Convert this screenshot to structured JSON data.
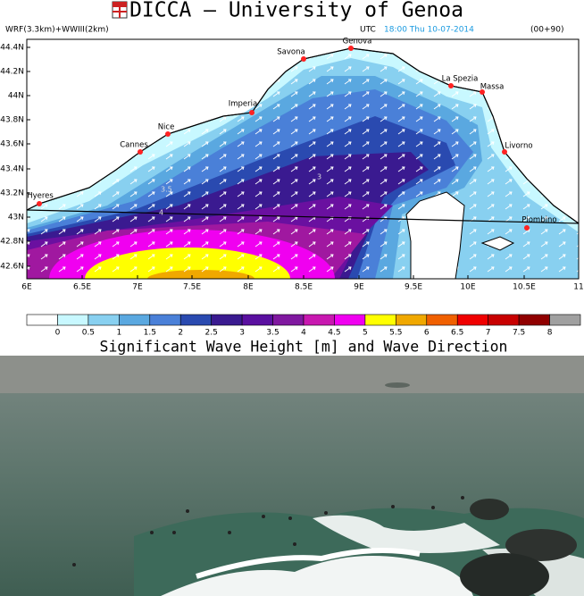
{
  "header": {
    "title": "DICCA — University of Genoa",
    "model": "WRF(3.3km)+WWIII(2km)",
    "time_prefix": "UTC",
    "time": "18:00 Thu 10-07-2014",
    "lead": "(00+90)"
  },
  "map": {
    "lat_labels": [
      "44.4N",
      "44.2N",
      "44N",
      "43.8N",
      "43.6N",
      "43.4N",
      "43.2N",
      "43N",
      "42.8N",
      "42.6N"
    ],
    "lon_labels": [
      "6E",
      "6.5E",
      "7E",
      "7.5E",
      "8E",
      "8.5E",
      "9E",
      "9.5E",
      "10E",
      "10.5E",
      "11"
    ],
    "cities": [
      "Genova",
      "Savona",
      "La Spezia",
      "Massa",
      "Imperia",
      "Nice",
      "Cannes",
      "Livorno",
      "Hyeres",
      "Piombino"
    ],
    "contour_labels": [
      "3",
      "3.5",
      "4"
    ]
  },
  "legend": {
    "labels": [
      "0",
      "0.5",
      "1",
      "1.5",
      "2",
      "2.5",
      "3",
      "3.5",
      "4",
      "4.5",
      "5",
      "5.5",
      "6",
      "6.5",
      "7",
      "7.5",
      "8"
    ],
    "caption": "Significant Wave Height [m] and Wave Direction"
  }
}
